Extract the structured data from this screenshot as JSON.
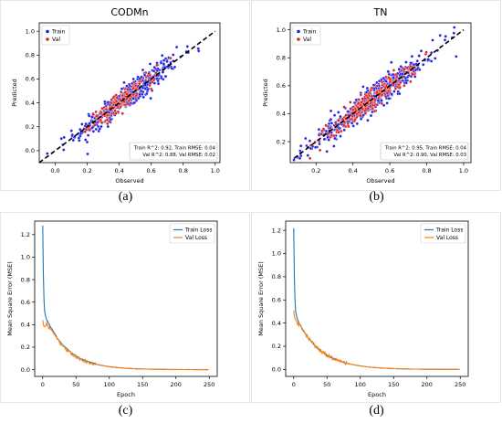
{
  "captions": [
    "(a)",
    "(b)",
    "(c)",
    "(d)"
  ],
  "chart_data": [
    {
      "type": "scatter",
      "title": "CODMn",
      "xlabel": "Observed",
      "ylabel": "Predicted",
      "xlim": [
        -0.1,
        1.03
      ],
      "ylim": [
        -0.1,
        1.07
      ],
      "xticks": [
        "0.0",
        "0.2",
        "0.4",
        "0.6",
        "0.8",
        "1.0"
      ],
      "yticks": [
        "0.0",
        "0.2",
        "0.4",
        "0.6",
        "0.8",
        "1.0"
      ],
      "legend": [
        "Train",
        "Val"
      ],
      "legend_position": "top-left",
      "annotation": [
        "Train R^2: 0.92, Train RMSE: 0.04",
        "Val R^2: 0.88, Val RMSE: 0.02"
      ],
      "series": [
        {
          "name": "Train",
          "color": "#1f1fe0",
          "x_range": [
            -0.05,
            1.0
          ],
          "center": 0.45,
          "spread": 0.16,
          "noise": 0.055,
          "n": 420
        },
        {
          "name": "Val",
          "color": "#e02020",
          "x_range": [
            0.15,
            0.8
          ],
          "center": 0.42,
          "spread": 0.1,
          "noise": 0.04,
          "n": 140
        }
      ],
      "reference_line": {
        "x": [
          -0.1,
          1.0
        ],
        "y": [
          -0.1,
          1.0
        ],
        "style": "dashed",
        "color": "#000000"
      },
      "grid": false
    },
    {
      "type": "scatter",
      "title": "TN",
      "xlabel": "Observed",
      "ylabel": "Predicted",
      "xlim": [
        0.06,
        1.04
      ],
      "ylim": [
        0.05,
        1.05
      ],
      "xticks": [
        "0.2",
        "0.4",
        "0.6",
        "0.8",
        "1.0"
      ],
      "yticks": [
        "0.2",
        "0.4",
        "0.6",
        "0.8",
        "1.0"
      ],
      "legend": [
        "Train",
        "Val"
      ],
      "legend_position": "top-left",
      "annotation": [
        "Train R^2: 0.95, Train RMSE: 0.04",
        "Val R^2: 0.90, Val RMSE: 0.03"
      ],
      "series": [
        {
          "name": "Train",
          "color": "#1f1fe0",
          "x_range": [
            0.08,
            1.0
          ],
          "center": 0.5,
          "spread": 0.17,
          "noise": 0.045,
          "n": 500
        },
        {
          "name": "Val",
          "color": "#e02020",
          "x_range": [
            0.15,
            0.85
          ],
          "center": 0.5,
          "spread": 0.13,
          "noise": 0.04,
          "n": 220
        }
      ],
      "reference_line": {
        "x": [
          0.08,
          1.0
        ],
        "y": [
          0.08,
          1.0
        ],
        "style": "dashed",
        "color": "#000000"
      },
      "grid": false
    },
    {
      "type": "line",
      "xlabel": "Epoch",
      "ylabel": "Mean Square Error (MSE)",
      "xlim": [
        -12,
        262
      ],
      "ylim": [
        -0.06,
        1.32
      ],
      "xticks": [
        "0",
        "50",
        "100",
        "150",
        "200",
        "250"
      ],
      "yticks": [
        "0.0",
        "0.2",
        "0.4",
        "0.6",
        "0.8",
        "1.0",
        "1.2"
      ],
      "legend_position": "top-right",
      "series": [
        {
          "name": "Train Loss",
          "color": "#1f77b4",
          "start": 1.28,
          "early": [
            [
              1,
              0.85
            ],
            [
              2,
              0.62
            ],
            [
              3,
              0.52
            ],
            [
              5,
              0.46
            ],
            [
              8,
              0.42
            ],
            [
              12,
              0.38
            ]
          ],
          "tail_rate": 0.03,
          "tail_from": 12,
          "n_epochs": 250
        },
        {
          "name": "Val Loss",
          "color": "#ff7f0e",
          "start": 0.44,
          "early": [
            [
              1,
              0.4
            ],
            [
              3,
              0.37
            ],
            [
              6,
              0.41
            ],
            [
              9,
              0.36
            ],
            [
              12,
              0.37
            ],
            [
              15,
              0.33
            ]
          ],
          "tail_rate": 0.03,
          "tail_from": 15,
          "n_epochs": 250
        }
      ],
      "grid": false
    },
    {
      "type": "line",
      "xlabel": "Epoch",
      "ylabel": "Mean Square Error (MSE)",
      "xlim": [
        -12,
        262
      ],
      "ylim": [
        -0.06,
        1.28
      ],
      "xticks": [
        "0",
        "50",
        "100",
        "150",
        "200",
        "250"
      ],
      "yticks": [
        "0.0",
        "0.2",
        "0.4",
        "0.6",
        "0.8",
        "1.0",
        "1.2"
      ],
      "legend_position": "top-right",
      "series": [
        {
          "name": "Train Loss",
          "color": "#1f77b4",
          "start": 1.22,
          "early": [
            [
              1,
              0.8
            ],
            [
              2,
              0.6
            ],
            [
              3,
              0.5
            ],
            [
              5,
              0.44
            ],
            [
              8,
              0.4
            ],
            [
              12,
              0.36
            ]
          ],
          "tail_rate": 0.028,
          "tail_from": 12,
          "n_epochs": 250
        },
        {
          "name": "Val Loss",
          "color": "#ff7f0e",
          "start": 0.51,
          "early": [
            [
              1,
              0.46
            ],
            [
              3,
              0.42
            ],
            [
              6,
              0.4
            ],
            [
              9,
              0.38
            ],
            [
              12,
              0.36
            ],
            [
              15,
              0.33
            ]
          ],
          "tail_rate": 0.028,
          "tail_from": 15,
          "n_epochs": 250
        }
      ],
      "grid": false
    }
  ]
}
